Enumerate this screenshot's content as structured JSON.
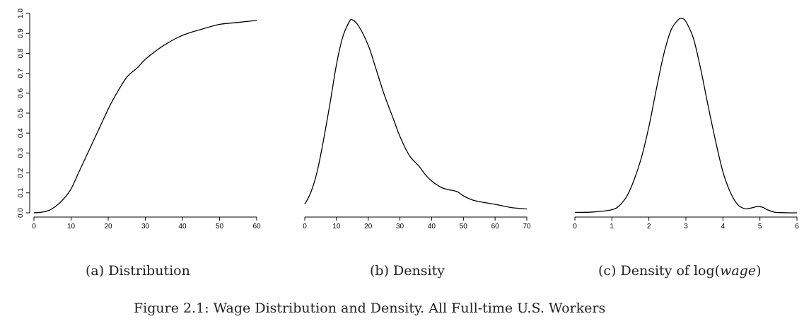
{
  "figure_caption": "Figure 2.1: Wage Distribution and Density. All Full-time U.S. Workers",
  "panels": [
    {
      "caption": "(a) Distribution"
    },
    {
      "caption": "(b) Density"
    },
    {
      "caption_prefix": "(c) Density of log(",
      "caption_italic": "wage",
      "caption_suffix": ")"
    }
  ],
  "chart_data": [
    {
      "type": "line",
      "title": "",
      "xlabel": "",
      "ylabel": "",
      "xlim": [
        0,
        60
      ],
      "ylim": [
        0,
        1.0
      ],
      "xticks": [
        0,
        10,
        20,
        30,
        40,
        50,
        60
      ],
      "yticks": [
        "0.0",
        "0.1",
        "0.2",
        "0.3",
        "0.4",
        "0.5",
        "0.6",
        "0.7",
        "0.8",
        "0.9",
        "1.0"
      ],
      "grid": false,
      "series": [
        {
          "x": [
            0,
            2,
            4,
            6,
            8,
            10,
            12,
            14,
            16,
            18,
            20,
            22,
            25,
            28,
            30,
            35,
            40,
            45,
            50,
            55,
            60
          ],
          "y": [
            0,
            0.003,
            0.012,
            0.035,
            0.07,
            0.12,
            0.2,
            0.28,
            0.36,
            0.44,
            0.52,
            0.59,
            0.68,
            0.73,
            0.77,
            0.84,
            0.89,
            0.92,
            0.945,
            0.955,
            0.965
          ]
        }
      ]
    },
    {
      "type": "line",
      "title": "",
      "xlabel": "",
      "ylabel": "",
      "xlim": [
        0,
        70
      ],
      "xticks": [
        0,
        10,
        20,
        30,
        40,
        50,
        60,
        70
      ],
      "grid": false,
      "series": [
        {
          "x": [
            0,
            2,
            4,
            6,
            8,
            10,
            12,
            14,
            15,
            17,
            20,
            22,
            25,
            28,
            30,
            33,
            36,
            38,
            40,
            43,
            45,
            48,
            50,
            53,
            56,
            60,
            65,
            70
          ],
          "y": [
            0.04,
            0.1,
            0.2,
            0.35,
            0.52,
            0.7,
            0.83,
            0.9,
            0.91,
            0.88,
            0.79,
            0.7,
            0.56,
            0.44,
            0.36,
            0.27,
            0.22,
            0.18,
            0.15,
            0.12,
            0.11,
            0.1,
            0.08,
            0.06,
            0.05,
            0.04,
            0.025,
            0.018
          ]
        }
      ]
    },
    {
      "type": "line",
      "title": "",
      "xlabel": "",
      "ylabel": "",
      "xlim": [
        0,
        6
      ],
      "xticks": [
        0,
        1,
        2,
        3,
        4,
        5,
        6
      ],
      "grid": false,
      "series": [
        {
          "x": [
            0,
            0.5,
            1.0,
            1.2,
            1.4,
            1.6,
            1.8,
            2.0,
            2.2,
            2.4,
            2.6,
            2.8,
            2.9,
            3.0,
            3.2,
            3.4,
            3.6,
            3.8,
            4.0,
            4.2,
            4.4,
            4.6,
            4.8,
            4.9,
            5.0,
            5.1,
            5.2,
            5.4,
            5.6,
            5.8,
            6.0
          ],
          "y": [
            0.002,
            0.004,
            0.015,
            0.035,
            0.08,
            0.16,
            0.27,
            0.42,
            0.6,
            0.77,
            0.89,
            0.94,
            0.945,
            0.93,
            0.85,
            0.7,
            0.52,
            0.35,
            0.2,
            0.1,
            0.04,
            0.02,
            0.025,
            0.03,
            0.03,
            0.025,
            0.015,
            0.003,
            0.001,
            0,
            0
          ]
        }
      ]
    }
  ]
}
